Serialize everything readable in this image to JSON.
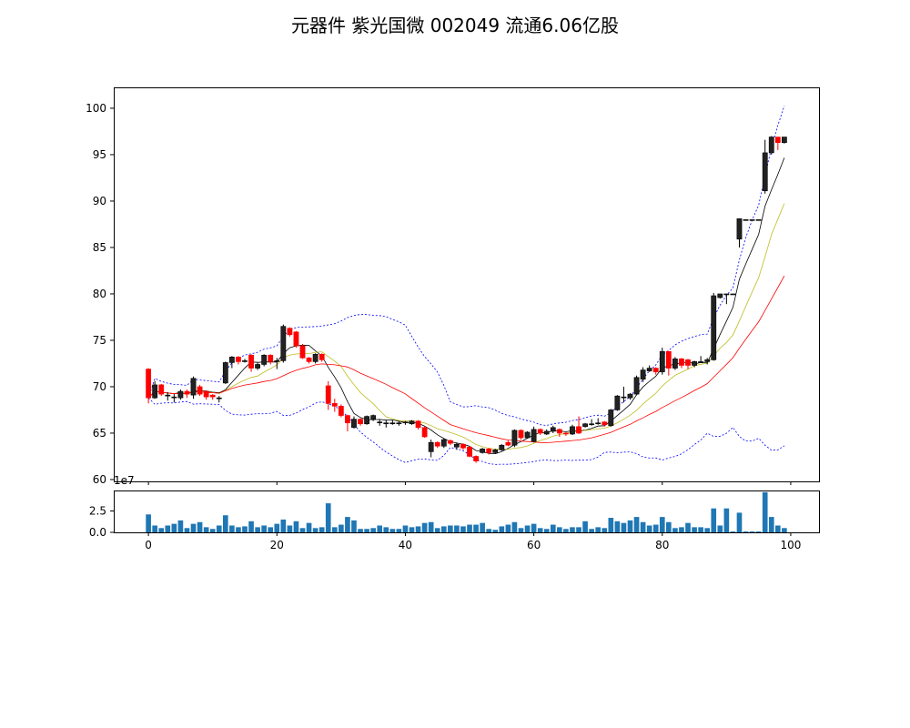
{
  "title": "元器件 紫光国微 002049 流通6.06亿股",
  "chart_data": [
    {
      "type": "candlestick",
      "panel": "price",
      "x": [
        0,
        1,
        2,
        3,
        4,
        5,
        6,
        7,
        8,
        9,
        10,
        11,
        12,
        13,
        14,
        15,
        16,
        17,
        18,
        19,
        20,
        21,
        22,
        23,
        24,
        25,
        26,
        27,
        28,
        29,
        30,
        31,
        32,
        33,
        34,
        35,
        36,
        37,
        38,
        39,
        40,
        41,
        42,
        43,
        44,
        45,
        46,
        47,
        48,
        49,
        50,
        51,
        52,
        53,
        54,
        55,
        56,
        57,
        58,
        59,
        60,
        61,
        62,
        63,
        64,
        65,
        66,
        67,
        68,
        69,
        70,
        71,
        72,
        73,
        74,
        75,
        76,
        77,
        78,
        79,
        80,
        81,
        82,
        83,
        84,
        85,
        86,
        87,
        88,
        89,
        90,
        91,
        92,
        93,
        94,
        95,
        96,
        97,
        98,
        99
      ],
      "open": [
        71.9,
        68.8,
        70.2,
        69.1,
        68.9,
        68.8,
        69.5,
        69.1,
        70.0,
        69.5,
        69.1,
        68.8,
        70.4,
        72.6,
        73.2,
        72.8,
        73.4,
        72.0,
        72.4,
        73.4,
        72.8,
        72.8,
        76.3,
        75.9,
        74.4,
        73.1,
        72.7,
        73.5,
        70.1,
        68.2,
        67.9,
        66.9,
        65.6,
        66.5,
        66.0,
        66.5,
        66.2,
        66.1,
        66.1,
        66.1,
        66.1,
        66.0,
        66.3,
        65.6,
        63.0,
        64.0,
        63.6,
        64.2,
        63.5,
        63.8,
        63.5,
        62.5,
        62.9,
        63.3,
        62.9,
        63.2,
        64.0,
        63.7,
        65.3,
        64.5,
        64.1,
        65.4,
        64.9,
        65.2,
        65.4,
        65.0,
        64.9,
        65.7,
        65.7,
        66.0,
        66.1,
        66.2,
        65.8,
        67.5,
        68.9,
        68.8,
        69.2,
        70.8,
        71.7,
        72.0,
        71.6,
        73.8,
        72.0,
        73.0,
        72.9,
        72.3,
        72.7,
        72.7,
        72.9,
        79.6,
        80.0,
        80.0,
        85.9,
        88.0,
        88.0,
        88.0,
        91.1,
        95.2,
        96.9,
        96.3
      ],
      "close": [
        68.8,
        70.2,
        69.2,
        69.1,
        68.9,
        69.5,
        69.2,
        70.9,
        69.2,
        68.9,
        68.9,
        68.8,
        72.6,
        73.2,
        72.7,
        72.8,
        72.0,
        72.4,
        73.4,
        72.7,
        72.8,
        76.5,
        75.6,
        74.4,
        73.1,
        72.7,
        73.5,
        72.9,
        68.2,
        67.9,
        66.9,
        66.1,
        66.5,
        66.0,
        66.8,
        66.9,
        66.2,
        66.1,
        66.1,
        66.1,
        66.2,
        66.3,
        65.6,
        64.6,
        64.0,
        63.6,
        64.3,
        63.9,
        63.8,
        63.4,
        62.5,
        62.0,
        63.3,
        62.9,
        63.2,
        63.7,
        63.7,
        65.3,
        64.5,
        65.1,
        65.4,
        65.0,
        65.2,
        65.6,
        65.0,
        64.9,
        65.7,
        65.0,
        66.0,
        66.0,
        66.1,
        65.9,
        67.5,
        69.0,
        68.9,
        69.2,
        71.0,
        71.8,
        72.0,
        71.6,
        73.8,
        72.0,
        73.0,
        72.3,
        72.3,
        72.7,
        72.7,
        72.9,
        79.8,
        80.0,
        80.0,
        80.0,
        88.1,
        88.0,
        88.0,
        88.0,
        95.2,
        96.9,
        96.3,
        96.9
      ],
      "high": [
        72.0,
        70.6,
        70.3,
        69.4,
        69.2,
        69.7,
        69.7,
        71.1,
        70.2,
        69.6,
        69.2,
        69.0,
        72.7,
        73.3,
        73.3,
        73.0,
        73.5,
        72.6,
        73.5,
        73.5,
        73.1,
        76.7,
        76.4,
        76.0,
        74.6,
        73.2,
        73.6,
        73.6,
        70.6,
        68.7,
        68.1,
        67.0,
        66.8,
        66.6,
        66.9,
        67.0,
        66.5,
        66.4,
        66.4,
        66.3,
        66.3,
        66.4,
        66.4,
        65.7,
        64.3,
        64.1,
        64.4,
        64.3,
        64.0,
        63.9,
        63.6,
        62.6,
        63.4,
        63.4,
        63.3,
        63.8,
        64.2,
        65.4,
        65.4,
        65.2,
        65.7,
        65.5,
        65.4,
        65.8,
        65.5,
        65.1,
        65.9,
        66.8,
        66.1,
        66.5,
        66.6,
        66.3,
        67.6,
        69.1,
        70.0,
        69.3,
        71.2,
        72.1,
        72.3,
        72.1,
        74.2,
        73.8,
        73.2,
        73.1,
        73.0,
        72.8,
        73.3,
        73.1,
        80.1,
        80.0,
        80.0,
        80.0,
        88.1,
        88.0,
        88.0,
        88.0,
        96.6,
        97.0,
        96.9,
        96.9
      ],
      "low": [
        68.2,
        68.7,
        69.0,
        68.5,
        68.3,
        68.6,
        68.8,
        68.7,
        69.0,
        68.6,
        68.6,
        68.3,
        70.3,
        72.0,
        72.4,
        72.6,
        71.6,
        71.8,
        72.2,
        72.4,
        71.9,
        72.6,
        75.4,
        74.2,
        73.0,
        72.5,
        72.5,
        72.7,
        67.5,
        67.3,
        66.7,
        65.2,
        65.5,
        65.8,
        65.9,
        66.3,
        65.8,
        65.6,
        65.9,
        65.8,
        65.9,
        65.9,
        65.4,
        64.5,
        62.4,
        63.4,
        63.4,
        63.7,
        63.2,
        63.2,
        62.4,
        61.8,
        62.8,
        62.7,
        62.8,
        63.1,
        63.6,
        63.5,
        64.3,
        64.4,
        64.0,
        64.8,
        64.8,
        65.0,
        64.6,
        64.7,
        64.8,
        64.9,
        65.6,
        65.8,
        65.9,
        65.7,
        65.7,
        67.4,
        68.3,
        68.6,
        69.1,
        70.5,
        71.6,
        71.3,
        71.3,
        71.2,
        71.8,
        72.0,
        71.9,
        72.1,
        72.6,
        72.4,
        72.8,
        79.5,
        78.9,
        80.0,
        85.0,
        88.0,
        88.0,
        88.0,
        90.8,
        95.0,
        95.5,
        96.2
      ],
      "up_color": "#222222",
      "down_color": "#ff0000",
      "moving_averages": [
        {
          "period": 5,
          "color": "#000000"
        },
        {
          "period": 10,
          "color": "#bcbd22"
        },
        {
          "period": 20,
          "color": "#ff0000"
        }
      ],
      "bollinger": {
        "period": 20,
        "k": 2,
        "color": "#0000ff",
        "style": "dashed"
      },
      "ylim": [
        59.8,
        102.25
      ],
      "xlim": [
        -5.4,
        104.4
      ],
      "yticks": [
        60,
        65,
        70,
        75,
        80,
        85,
        90,
        95,
        100
      ],
      "grid": false
    },
    {
      "type": "bar",
      "panel": "volume",
      "x": [
        0,
        1,
        2,
        3,
        4,
        5,
        6,
        7,
        8,
        9,
        10,
        11,
        12,
        13,
        14,
        15,
        16,
        17,
        18,
        19,
        20,
        21,
        22,
        23,
        24,
        25,
        26,
        27,
        28,
        29,
        30,
        31,
        32,
        33,
        34,
        35,
        36,
        37,
        38,
        39,
        40,
        41,
        42,
        43,
        44,
        45,
        46,
        47,
        48,
        49,
        50,
        51,
        52,
        53,
        54,
        55,
        56,
        57,
        58,
        59,
        60,
        61,
        62,
        63,
        64,
        65,
        66,
        67,
        68,
        69,
        70,
        71,
        72,
        73,
        74,
        75,
        76,
        77,
        78,
        79,
        80,
        81,
        82,
        83,
        84,
        85,
        86,
        87,
        88,
        89,
        90,
        91,
        92,
        93,
        94,
        95,
        96,
        97,
        98,
        99
      ],
      "values": [
        2.1,
        0.8,
        0.5,
        0.8,
        1.0,
        1.4,
        0.5,
        1.0,
        1.2,
        0.6,
        0.4,
        0.8,
        2.0,
        0.8,
        0.6,
        0.7,
        1.3,
        0.6,
        0.8,
        0.6,
        1.0,
        1.5,
        0.8,
        1.3,
        0.5,
        1.1,
        0.5,
        0.6,
        3.4,
        0.6,
        0.9,
        1.8,
        1.4,
        0.4,
        0.4,
        0.5,
        0.8,
        0.6,
        0.4,
        0.4,
        0.8,
        0.6,
        0.7,
        1.1,
        1.2,
        0.5,
        0.7,
        0.8,
        0.8,
        0.7,
        0.9,
        0.9,
        1.1,
        0.4,
        0.3,
        0.7,
        0.9,
        1.2,
        0.5,
        0.8,
        1.0,
        0.5,
        0.4,
        0.9,
        0.6,
        0.4,
        0.6,
        0.6,
        1.3,
        0.4,
        0.6,
        0.5,
        1.7,
        1.3,
        1.1,
        1.4,
        1.8,
        1.2,
        0.8,
        0.9,
        1.8,
        1.2,
        0.5,
        0.6,
        1.1,
        0.6,
        0.6,
        0.5,
        2.8,
        0.8,
        2.8,
        0.1,
        2.3,
        0.1,
        0.1,
        0.1,
        4.7,
        1.8,
        0.8,
        0.5
      ],
      "color": "#1f77b4",
      "scale_label": "1e7",
      "ylim": [
        0,
        4.9
      ],
      "yticks": [
        "0.0",
        "2.5"
      ],
      "xticks": [
        0,
        20,
        40,
        60,
        80,
        100
      ]
    }
  ]
}
